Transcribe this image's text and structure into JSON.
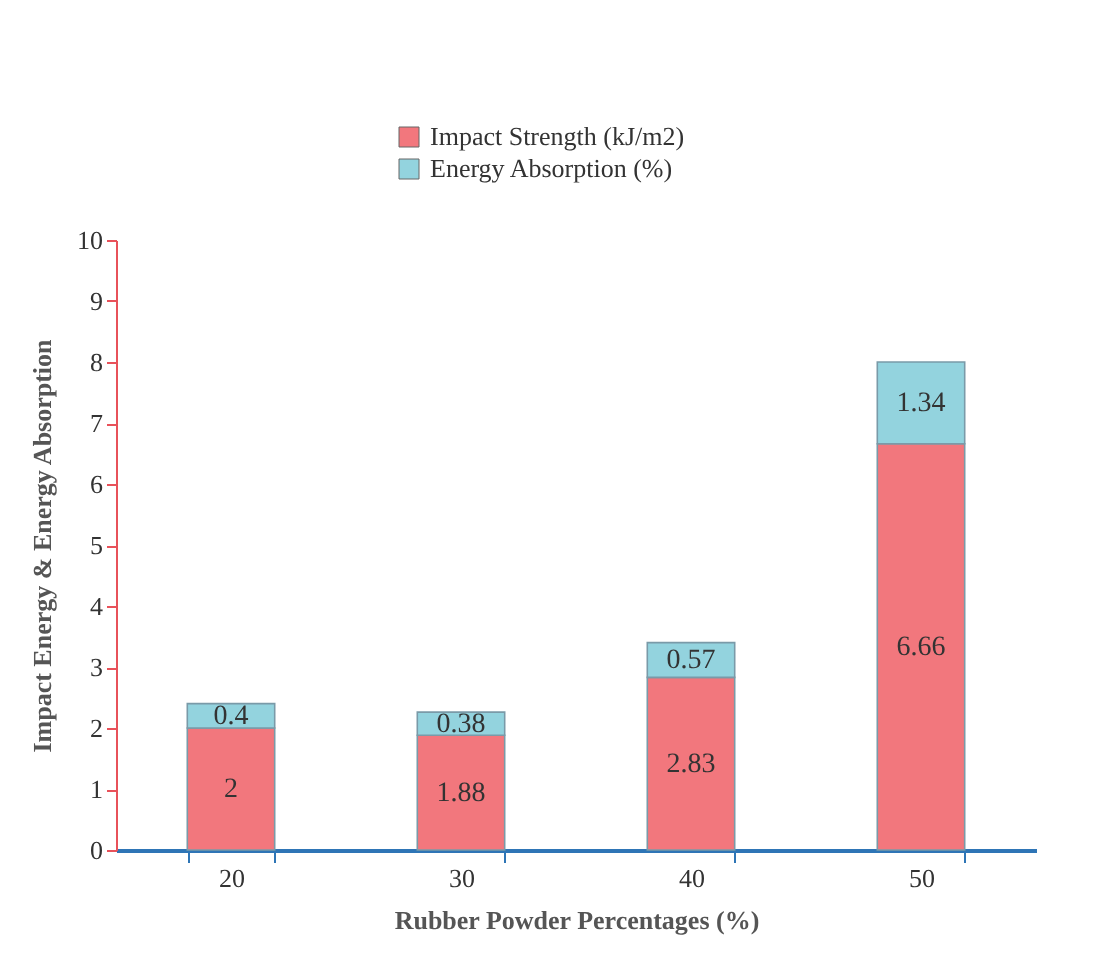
{
  "chart_data": {
    "type": "bar",
    "stacked": true,
    "xlabel": "Rubber Powder Percentages (%)",
    "ylabel": "Impact Energy & Energy Absorption",
    "categories": [
      "20",
      "30",
      "40",
      "50"
    ],
    "series": [
      {
        "name": "Impact Strength (kJ/m2)",
        "color": "#f2777d",
        "values": [
          2,
          1.88,
          2.83,
          6.66
        ]
      },
      {
        "name": "Energy Absorption (%)",
        "color": "#93d3de",
        "values": [
          0.4,
          0.38,
          0.57,
          1.34
        ]
      }
    ],
    "ylim": [
      0,
      10
    ],
    "yticks": [
      0,
      1,
      2,
      3,
      4,
      5,
      6,
      7,
      8,
      9,
      10
    ],
    "grid": false,
    "legend": "top",
    "data_labels": true
  }
}
